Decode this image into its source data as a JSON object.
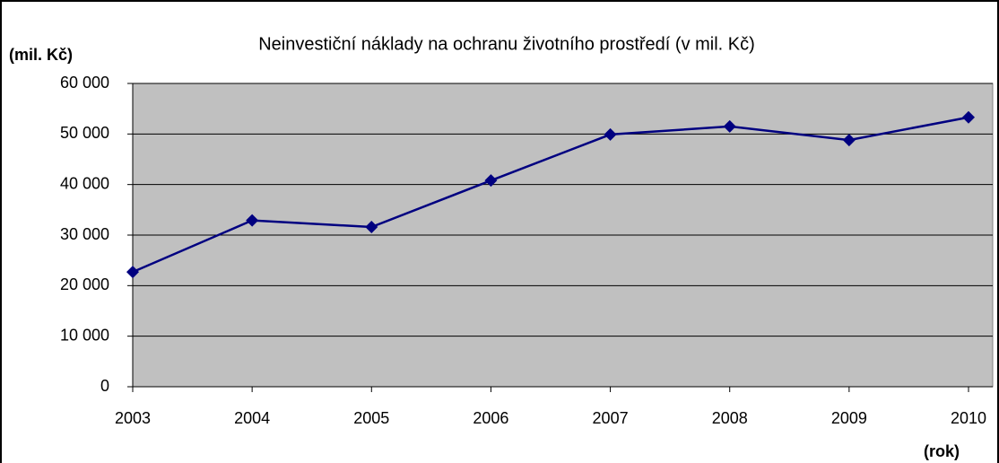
{
  "chart_data": {
    "type": "line",
    "title": "Neinvestiční náklady na ochranu životního prostředí (v mil. Kč)",
    "y_label": "(mil. Kč)",
    "x_label": "(rok)",
    "categories": [
      "2003",
      "2004",
      "2005",
      "2006",
      "2007",
      "2008",
      "2009",
      "2010"
    ],
    "series": [
      {
        "name": "Neinvestiční náklady",
        "color": "#000080",
        "values": [
          22700,
          32900,
          31600,
          40800,
          49900,
          51500,
          48800,
          53300
        ]
      }
    ],
    "ylim": [
      0,
      60000
    ],
    "yticks": [
      0,
      {
        "value": 10000,
        "label": "10 000"
      },
      {
        "value": 20000,
        "label": "20 000"
      },
      {
        "value": 30000,
        "label": "30 000"
      },
      {
        "value": 40000,
        "label": "40 000"
      },
      {
        "value": 50000,
        "label": "50 000"
      },
      {
        "value": 60000,
        "label": "60 000"
      }
    ],
    "grid": true,
    "plot_background": "#c0c0c0"
  }
}
